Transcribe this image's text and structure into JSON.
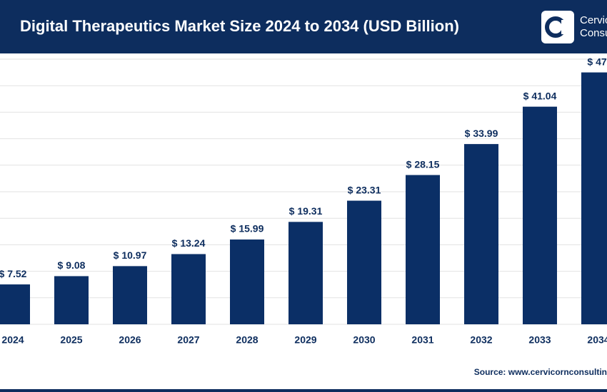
{
  "chart_data": {
    "type": "bar",
    "title": "Digital Therapeutics Market Size 2024 to 2034 (USD Billion)",
    "logo_lines": [
      "Cervic",
      "Consu"
    ],
    "source": "Source: www.cervicornconsultin",
    "categories": [
      "2024",
      "2025",
      "2026",
      "2027",
      "2028",
      "2029",
      "2030",
      "2031",
      "2032",
      "2033",
      "2034"
    ],
    "values": [
      7.52,
      9.08,
      10.97,
      13.24,
      15.99,
      19.31,
      23.31,
      28.15,
      33.99,
      41.04,
      47.5
    ],
    "value_labels": [
      "$ 7.52",
      "$ 9.08",
      "$ 10.97",
      "$ 13.24",
      "$ 15.99",
      "$ 19.31",
      "$ 23.31",
      "$ 28.15",
      "$ 33.99",
      "$ 41.04",
      "$ 47."
    ],
    "color": "#0b2f66",
    "ylim": [
      0,
      50
    ],
    "yticks": [
      0,
      5,
      10,
      15,
      20,
      25,
      30,
      35,
      40,
      45,
      50
    ],
    "grid": true
  }
}
